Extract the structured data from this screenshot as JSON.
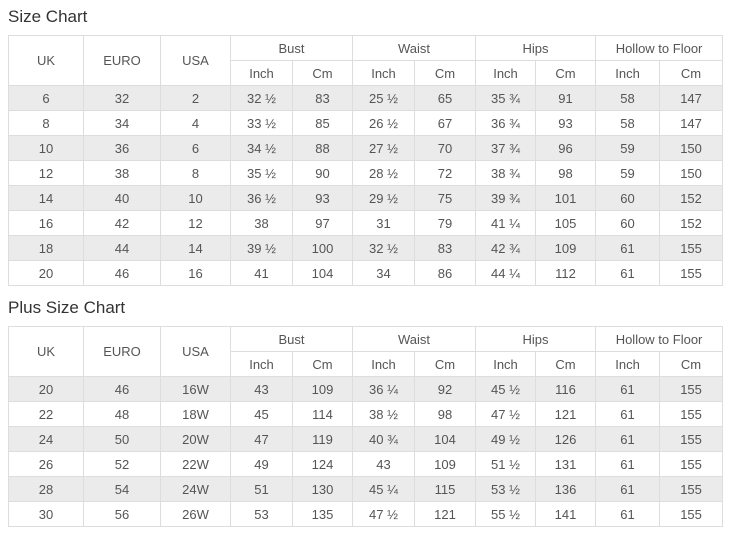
{
  "colors": {
    "background": "#ffffff",
    "row_stripe": "#ebebeb",
    "border": "#dddddd",
    "text": "#555555",
    "title": "#333333"
  },
  "chart_data": [
    {
      "type": "table",
      "title": "Size Chart",
      "plain_columns": [
        "UK",
        "EURO",
        "USA"
      ],
      "grouped_columns": [
        {
          "label": "Bust",
          "sub": [
            "Inch",
            "Cm"
          ]
        },
        {
          "label": "Waist",
          "sub": [
            "Inch",
            "Cm"
          ]
        },
        {
          "label": "Hips",
          "sub": [
            "Inch",
            "Cm"
          ]
        },
        {
          "label": "Hollow to Floor",
          "sub": [
            "Inch",
            "Cm"
          ]
        }
      ],
      "rows": [
        [
          "6",
          "32",
          "2",
          "32 ½",
          "83",
          "25 ½",
          "65",
          "35 ¾",
          "91",
          "58",
          "147"
        ],
        [
          "8",
          "34",
          "4",
          "33 ½",
          "85",
          "26 ½",
          "67",
          "36 ¾",
          "93",
          "58",
          "147"
        ],
        [
          "10",
          "36",
          "6",
          "34 ½",
          "88",
          "27 ½",
          "70",
          "37 ¾",
          "96",
          "59",
          "150"
        ],
        [
          "12",
          "38",
          "8",
          "35 ½",
          "90",
          "28 ½",
          "72",
          "38 ¾",
          "98",
          "59",
          "150"
        ],
        [
          "14",
          "40",
          "10",
          "36 ½",
          "93",
          "29 ½",
          "75",
          "39 ¾",
          "101",
          "60",
          "152"
        ],
        [
          "16",
          "42",
          "12",
          "38",
          "97",
          "31",
          "79",
          "41 ¼",
          "105",
          "60",
          "152"
        ],
        [
          "18",
          "44",
          "14",
          "39 ½",
          "100",
          "32 ½",
          "83",
          "42 ¾",
          "109",
          "61",
          "155"
        ],
        [
          "20",
          "46",
          "16",
          "41",
          "104",
          "34",
          "86",
          "44 ¼",
          "112",
          "61",
          "155"
        ]
      ]
    },
    {
      "type": "table",
      "title": "Plus Size Chart",
      "plain_columns": [
        "UK",
        "EURO",
        "USA"
      ],
      "grouped_columns": [
        {
          "label": "Bust",
          "sub": [
            "Inch",
            "Cm"
          ]
        },
        {
          "label": "Waist",
          "sub": [
            "Inch",
            "Cm"
          ]
        },
        {
          "label": "Hips",
          "sub": [
            "Inch",
            "Cm"
          ]
        },
        {
          "label": "Hollow to Floor",
          "sub": [
            "Inch",
            "Cm"
          ]
        }
      ],
      "rows": [
        [
          "20",
          "46",
          "16W",
          "43",
          "109",
          "36 ¼",
          "92",
          "45 ½",
          "116",
          "61",
          "155"
        ],
        [
          "22",
          "48",
          "18W",
          "45",
          "114",
          "38 ½",
          "98",
          "47 ½",
          "121",
          "61",
          "155"
        ],
        [
          "24",
          "50",
          "20W",
          "47",
          "119",
          "40 ¾",
          "104",
          "49 ½",
          "126",
          "61",
          "155"
        ],
        [
          "26",
          "52",
          "22W",
          "49",
          "124",
          "43",
          "109",
          "51 ½",
          "131",
          "61",
          "155"
        ],
        [
          "28",
          "54",
          "24W",
          "51",
          "130",
          "45 ¼",
          "115",
          "53 ½",
          "136",
          "61",
          "155"
        ],
        [
          "30",
          "56",
          "26W",
          "53",
          "135",
          "47 ½",
          "121",
          "55 ½",
          "141",
          "61",
          "155"
        ]
      ]
    }
  ]
}
